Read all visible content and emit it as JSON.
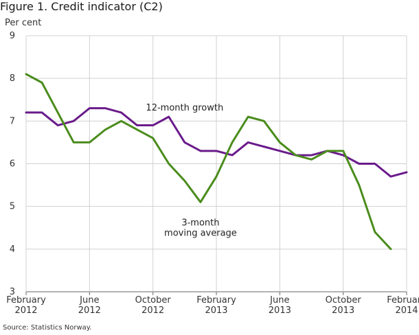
{
  "title": "Figure 1. Credit indicator (C2)",
  "source": "Source: Statistics Norway.",
  "chart_data": {
    "type": "line",
    "ylabel": "Per cent",
    "ylim": [
      3,
      9
    ],
    "yticks": [
      "3",
      "4",
      "5",
      "6",
      "7",
      "8",
      "9"
    ],
    "grid": true,
    "x_count": 25,
    "x_ticks": [
      {
        "index": 0,
        "line1": "February",
        "line2": "2012"
      },
      {
        "index": 4,
        "line1": "June",
        "line2": "2012"
      },
      {
        "index": 8,
        "line1": "October",
        "line2": "2012"
      },
      {
        "index": 12,
        "line1": "February",
        "line2": "2013"
      },
      {
        "index": 16,
        "line1": "June",
        "line2": "2013"
      },
      {
        "index": 20,
        "line1": "October",
        "line2": "2013"
      },
      {
        "index": 24,
        "line1": "February",
        "line2": "2014"
      }
    ],
    "series": [
      {
        "name": "12-month growth",
        "label_lines": [
          "12-month growth"
        ],
        "label_anchor": [
          10.0,
          7.25
        ],
        "color": "#6a1b8a",
        "values": [
          7.2,
          7.2,
          6.9,
          7.0,
          7.3,
          7.3,
          7.2,
          6.9,
          6.9,
          7.1,
          6.5,
          6.3,
          6.3,
          6.2,
          6.5,
          6.4,
          6.3,
          6.2,
          6.2,
          6.3,
          6.2,
          6.0,
          6.0,
          5.7,
          5.8
        ]
      },
      {
        "name": "3-month moving average",
        "label_lines": [
          "3-month",
          "moving average"
        ],
        "label_anchor": [
          11.0,
          4.55
        ],
        "color": "#4a8c1c",
        "values": [
          8.1,
          7.9,
          7.2,
          6.5,
          6.5,
          6.8,
          7.0,
          6.8,
          6.6,
          6.0,
          5.6,
          5.1,
          5.7,
          6.5,
          7.1,
          7.0,
          6.5,
          6.2,
          6.1,
          6.3,
          6.3,
          5.5,
          4.4,
          4.0,
          null
        ]
      }
    ]
  }
}
